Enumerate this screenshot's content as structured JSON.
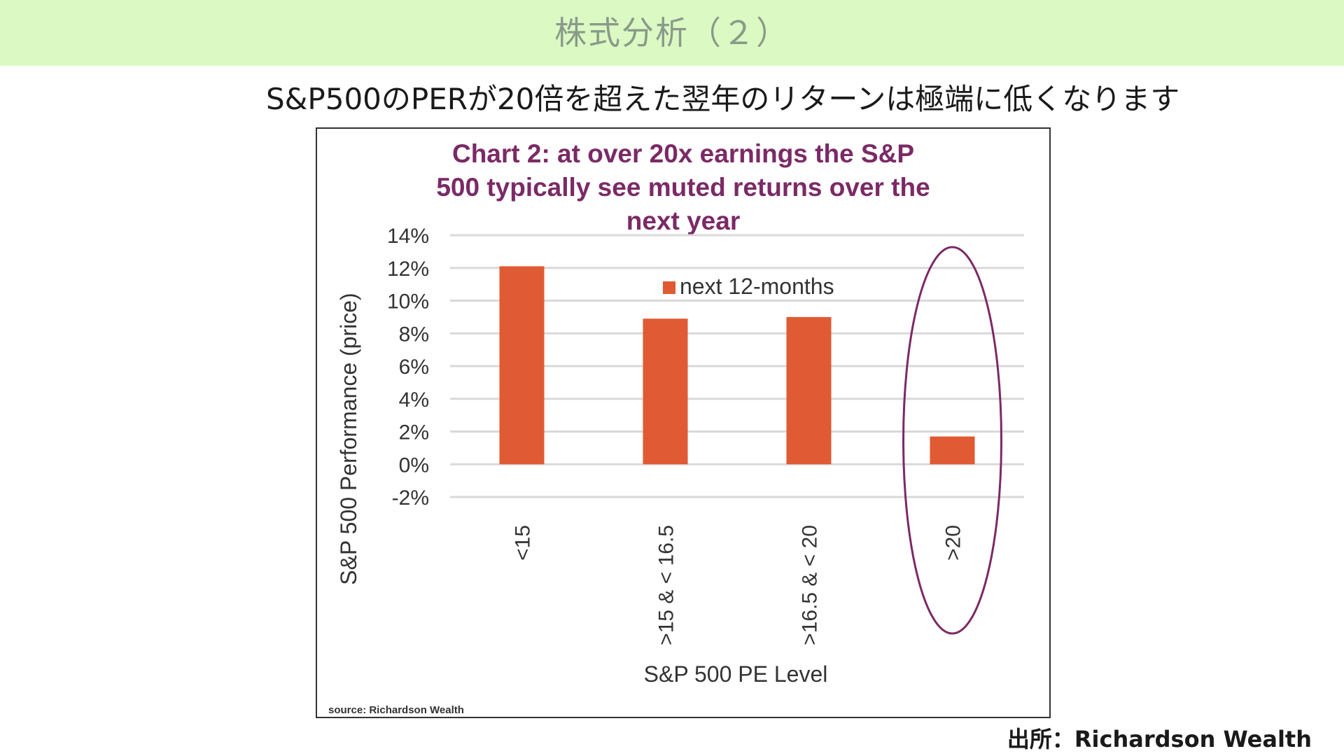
{
  "header": {
    "title": "株式分析（２）",
    "subtitle": "S&P500のPERが20倍を超えた翌年のリターンは極端に低くなります"
  },
  "footer": {
    "source": "出所：Richardson Wealth"
  },
  "chart_data": {
    "type": "bar",
    "title_lines": [
      "Chart 2: at over 20x earnings the S&P",
      "500 typically see muted returns over the",
      "next year"
    ],
    "categories": [
      "<15",
      ">15 & < 16.5",
      ">16.5 & < 20",
      ">20"
    ],
    "series": [
      {
        "name": "next 12-months",
        "values": [
          12.1,
          8.9,
          9.0,
          1.7
        ]
      }
    ],
    "xlabel": "S&P 500 PE Level",
    "ylabel": "S&P 500 Performance (price)",
    "ylim": [
      -2,
      14
    ],
    "yticks": [
      "-2%",
      "0%",
      "2%",
      "4%",
      "6%",
      "8%",
      "10%",
      "12%",
      "14%"
    ],
    "ytick_values": [
      -2,
      0,
      2,
      4,
      6,
      8,
      10,
      12,
      14
    ],
    "grid": true,
    "legend_position": "top-center",
    "highlight_category": ">20",
    "source_note": "source: Richardson Wealth",
    "colors": {
      "bar": "#e05a33",
      "title": "#7b2a66",
      "highlight": "#7b2a66",
      "grid": "#d9d9d9"
    }
  }
}
